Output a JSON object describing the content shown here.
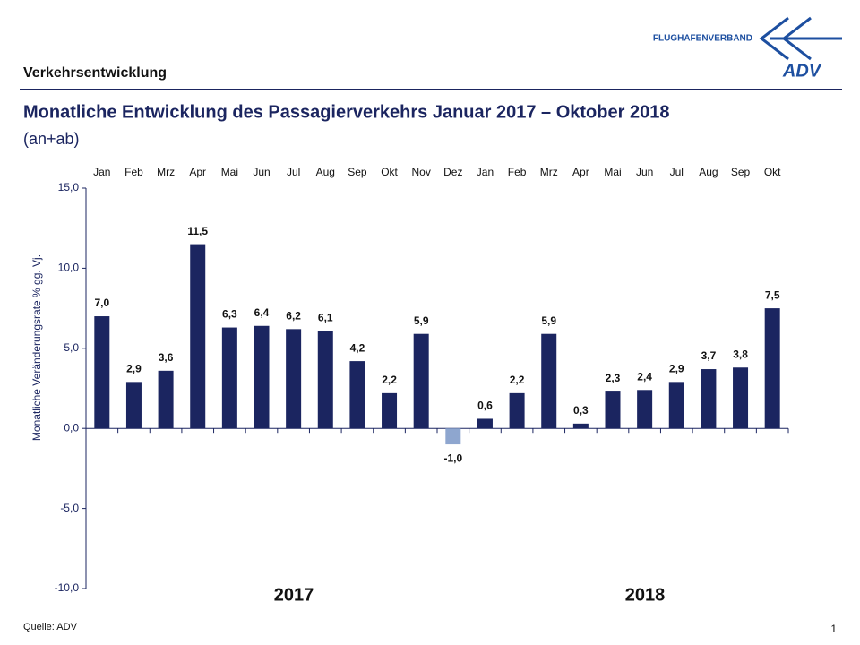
{
  "header": {
    "section": "Verkehrsentwicklung",
    "logo_text": "FLUGHAFENVERBAND",
    "logo_mark": "ADV"
  },
  "chart_data": {
    "type": "bar",
    "title": "Monatliche Entwicklung des Passagierverkehrs  Januar 2017 – Oktober 2018",
    "subtitle": "(an+ab)",
    "y_label": "Monatliche Veränderungsrate % gg. Vj.",
    "categories": [
      "Jan",
      "Feb",
      "Mrz",
      "Apr",
      "Mai",
      "Jun",
      "Jul",
      "Aug",
      "Sep",
      "Okt",
      "Nov",
      "Dez",
      "Jan",
      "Feb",
      "Mrz",
      "Apr",
      "Mai",
      "Jun",
      "Jul",
      "Aug",
      "Sep",
      "Okt"
    ],
    "values": [
      7.0,
      2.9,
      3.6,
      11.5,
      6.3,
      6.4,
      6.2,
      6.1,
      4.2,
      2.2,
      5.9,
      -1.0,
      0.6,
      2.2,
      5.9,
      0.3,
      2.3,
      2.4,
      2.9,
      3.7,
      3.8,
      7.5
    ],
    "value_labels": [
      "7,0",
      "2,9",
      "3,6",
      "11,5",
      "6,3",
      "6,4",
      "6,2",
      "6,1",
      "4,2",
      "2,2",
      "5,9",
      "-1,0",
      "0,6",
      "2,2",
      "5,9",
      "0,3",
      "2,3",
      "2,4",
      "2,9",
      "3,7",
      "3,8",
      "7,5"
    ],
    "color": "#1b2560",
    "negative_color": "#8ea6cf",
    "ylim": [
      -10,
      15
    ],
    "yticks": [
      {
        "value": -10,
        "label": "-10,0"
      },
      {
        "value": -5,
        "label": "-5,0"
      },
      {
        "value": 0,
        "label": "0,0"
      },
      {
        "value": 5,
        "label": "5,0"
      },
      {
        "value": 10,
        "label": "10,0"
      },
      {
        "value": 15,
        "label": "15,0"
      }
    ],
    "year_labels": [
      "2017",
      "2018"
    ],
    "grid": false
  },
  "footer": {
    "source": "Quelle: ADV",
    "page": "1"
  }
}
